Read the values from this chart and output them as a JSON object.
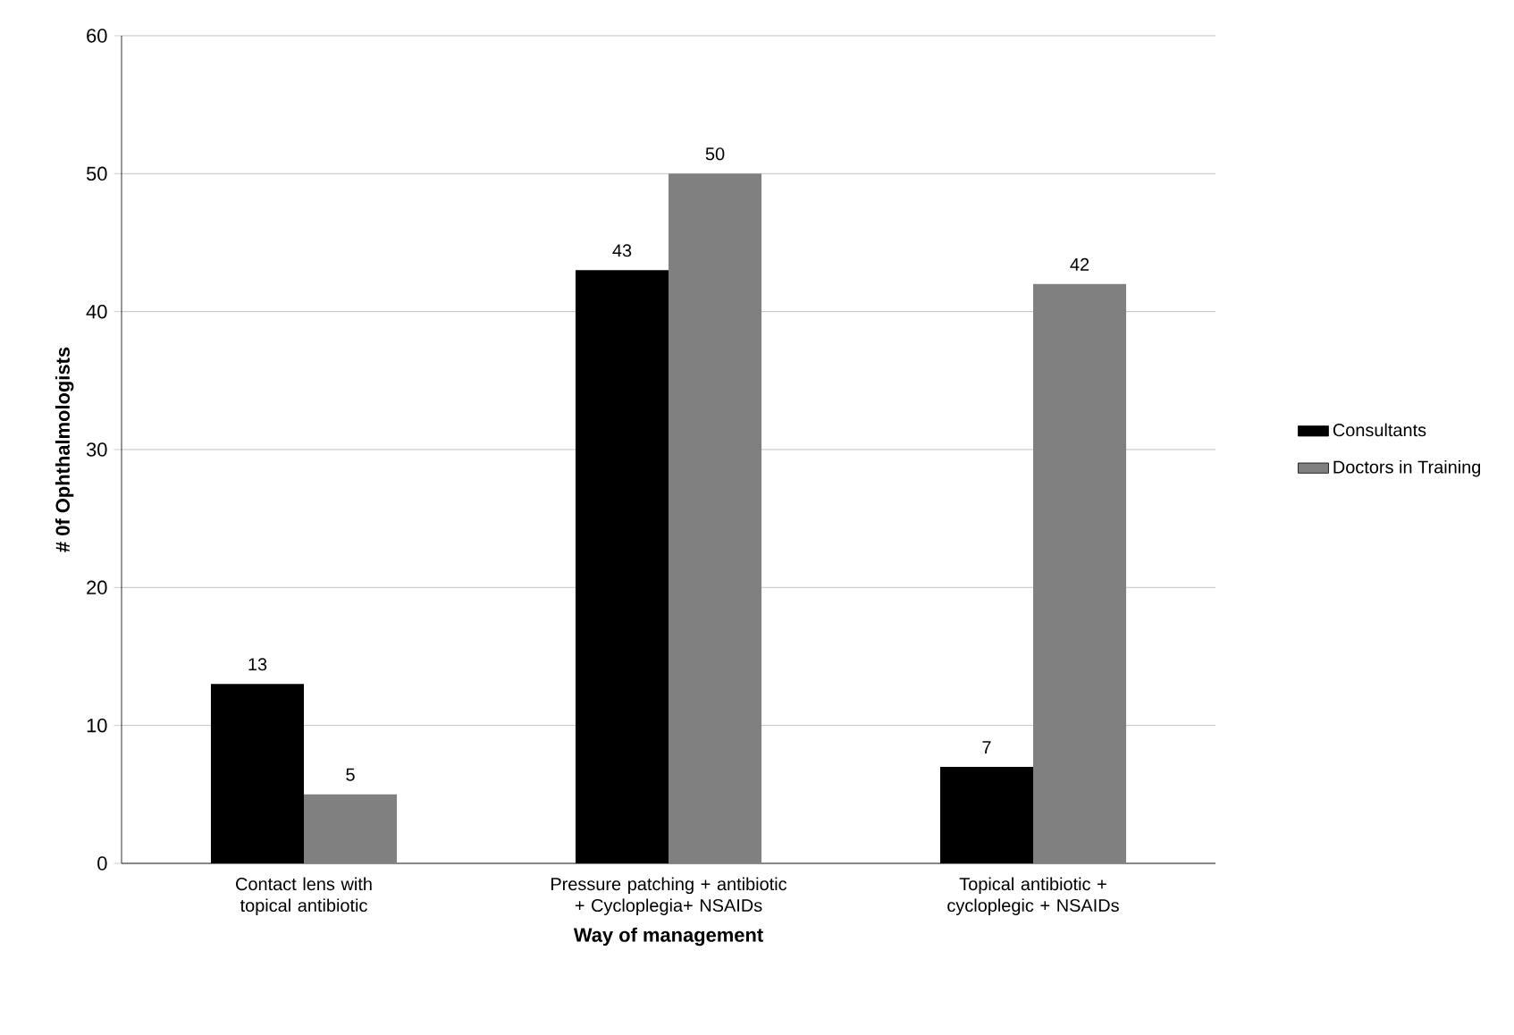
{
  "chart_data": {
    "type": "bar",
    "xlabel": "Way of management",
    "ylabel": "# 0f Ophthalmologists",
    "categories": [
      "Contact lens with topical antibiotic",
      "Pressure patching + antibiotic  + Cycloplegia+ NSAIDs",
      "Topical antibiotic + cycloplegic + NSAIDs"
    ],
    "series": [
      {
        "name": "Consultants",
        "color": "#000000",
        "values": [
          13,
          43,
          7
        ]
      },
      {
        "name": "Doctors in Training",
        "color": "#808080",
        "values": [
          5,
          50,
          42
        ]
      }
    ],
    "ylim": [
      0,
      60
    ],
    "yticks": [
      0,
      10,
      20,
      30,
      40,
      50,
      60
    ],
    "grid": "y",
    "legend": "right",
    "data_labels": true
  }
}
